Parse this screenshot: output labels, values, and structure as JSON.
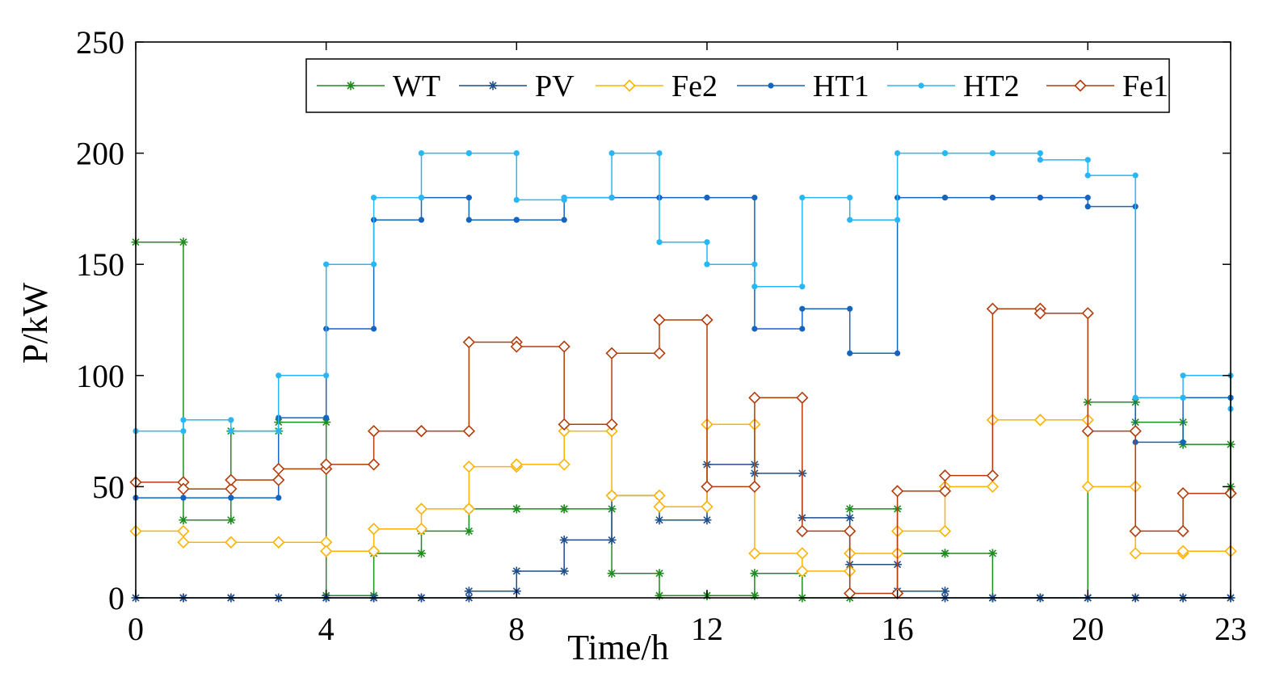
{
  "chart_data": {
    "type": "line",
    "step": "post",
    "xlabel": "Time/h",
    "ylabel": "P/kW",
    "xlim": [
      0,
      23
    ],
    "ylim": [
      0,
      250
    ],
    "xticks": [
      0,
      4,
      8,
      12,
      16,
      20,
      23
    ],
    "yticks": [
      0,
      50,
      100,
      150,
      200,
      250
    ],
    "legend_position": "top",
    "x": [
      0,
      1,
      2,
      3,
      4,
      5,
      6,
      7,
      8,
      9,
      10,
      11,
      12,
      13,
      14,
      15,
      16,
      17,
      18,
      19,
      20,
      21,
      22,
      23
    ],
    "series": [
      {
        "name": "WT",
        "color": "#1f8c1f",
        "marker": "star",
        "values": [
          160,
          35,
          75,
          79,
          1,
          20,
          30,
          40,
          40,
          40,
          11,
          1,
          1,
          11,
          0,
          40,
          20,
          20,
          0,
          0,
          88,
          79,
          69,
          50
        ]
      },
      {
        "name": "PV",
        "color": "#1f4e8c",
        "marker": "star",
        "values": [
          0,
          0,
          0,
          0,
          0,
          0,
          0,
          3,
          12,
          26,
          46,
          35,
          60,
          56,
          36,
          15,
          3,
          0,
          0,
          0,
          0,
          0,
          0,
          0
        ]
      },
      {
        "name": "Fe2",
        "color": "#ffb300",
        "marker": "diamond",
        "values": [
          30,
          25,
          25,
          25,
          21,
          31,
          40,
          59,
          60,
          75,
          46,
          41,
          78,
          20,
          12,
          20,
          30,
          50,
          80,
          80,
          50,
          20,
          21,
          21
        ]
      },
      {
        "name": "HT1",
        "color": "#1565c0",
        "marker": "dot",
        "values": [
          45,
          45,
          45,
          81,
          121,
          170,
          180,
          170,
          170,
          180,
          180,
          180,
          180,
          121,
          130,
          110,
          180,
          180,
          180,
          180,
          176,
          70,
          90,
          90
        ]
      },
      {
        "name": "HT2",
        "color": "#29b6f6",
        "marker": "dot",
        "values": [
          75,
          80,
          75,
          100,
          150,
          180,
          200,
          200,
          179,
          180,
          200,
          160,
          150,
          140,
          180,
          170,
          200,
          200,
          200,
          197,
          190,
          90,
          100,
          85
        ]
      },
      {
        "name": "Fe1",
        "color": "#b33c0a",
        "marker": "diamond",
        "values": [
          52,
          49,
          53,
          58,
          60,
          75,
          75,
          115,
          113,
          78,
          110,
          125,
          50,
          90,
          30,
          2,
          48,
          55,
          130,
          128,
          75,
          30,
          47,
          47
        ]
      }
    ]
  }
}
